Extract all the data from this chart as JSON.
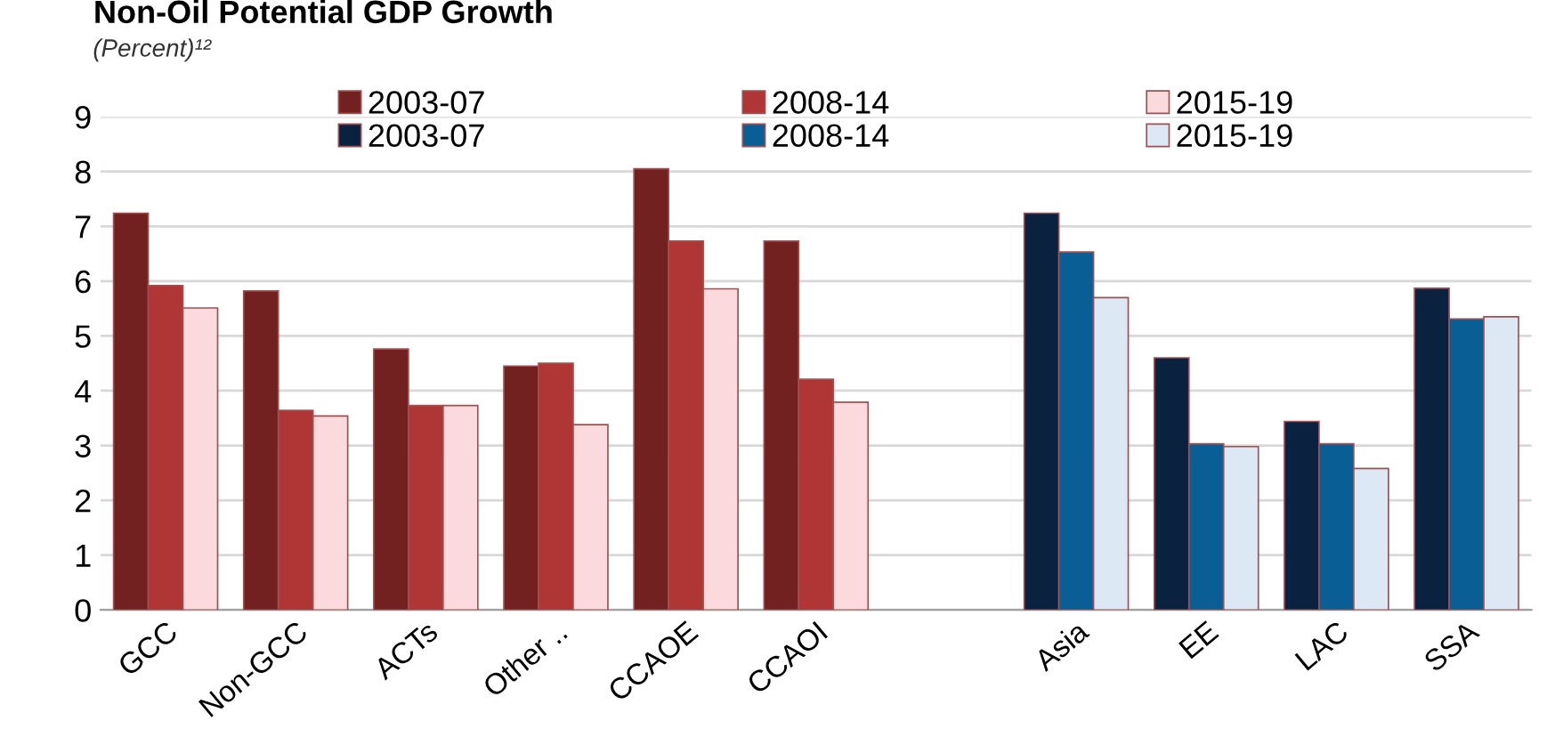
{
  "chart_data": {
    "type": "bar",
    "title": "Non-Oil Potential GDP Growth",
    "subtitle": "(Percent)¹²",
    "categories": [
      "GCC",
      "Non-GCC",
      "ACTs",
      "Other ..",
      "CCAOE",
      "CCAOI",
      null,
      "Asia",
      "EE",
      "LAC",
      "SSA"
    ],
    "series": [
      {
        "name": "2003-07",
        "color": "#722020",
        "values": [
          7.24,
          5.82,
          4.76,
          4.45,
          8.05,
          6.73,
          null,
          null,
          null,
          null,
          null
        ]
      },
      {
        "name": "2008-14",
        "color": "#b03535",
        "values": [
          5.92,
          3.64,
          3.73,
          4.5,
          6.73,
          4.21,
          null,
          null,
          null,
          null,
          null
        ]
      },
      {
        "name": "2015-19",
        "color": "#fadadd",
        "values": [
          5.51,
          3.54,
          3.73,
          3.38,
          5.86,
          3.79,
          null,
          null,
          null,
          null,
          null
        ]
      },
      {
        "name": "2003-07",
        "color": "#0a2240",
        "values": [
          null,
          null,
          null,
          null,
          null,
          null,
          null,
          7.24,
          4.6,
          3.44,
          5.87
        ]
      },
      {
        "name": "2008-14",
        "color": "#0a5e96",
        "values": [
          null,
          null,
          null,
          null,
          null,
          null,
          null,
          6.53,
          3.03,
          3.03,
          5.31
        ]
      },
      {
        "name": "2015-19",
        "color": "#dce8f4",
        "values": [
          null,
          null,
          null,
          null,
          null,
          null,
          null,
          5.7,
          2.98,
          2.58,
          5.35
        ]
      }
    ],
    "ylim": [
      0,
      9
    ],
    "yticks": [
      0,
      1,
      2,
      3,
      4,
      5,
      6,
      7,
      8,
      9
    ],
    "grid": "y",
    "legend": "top"
  }
}
